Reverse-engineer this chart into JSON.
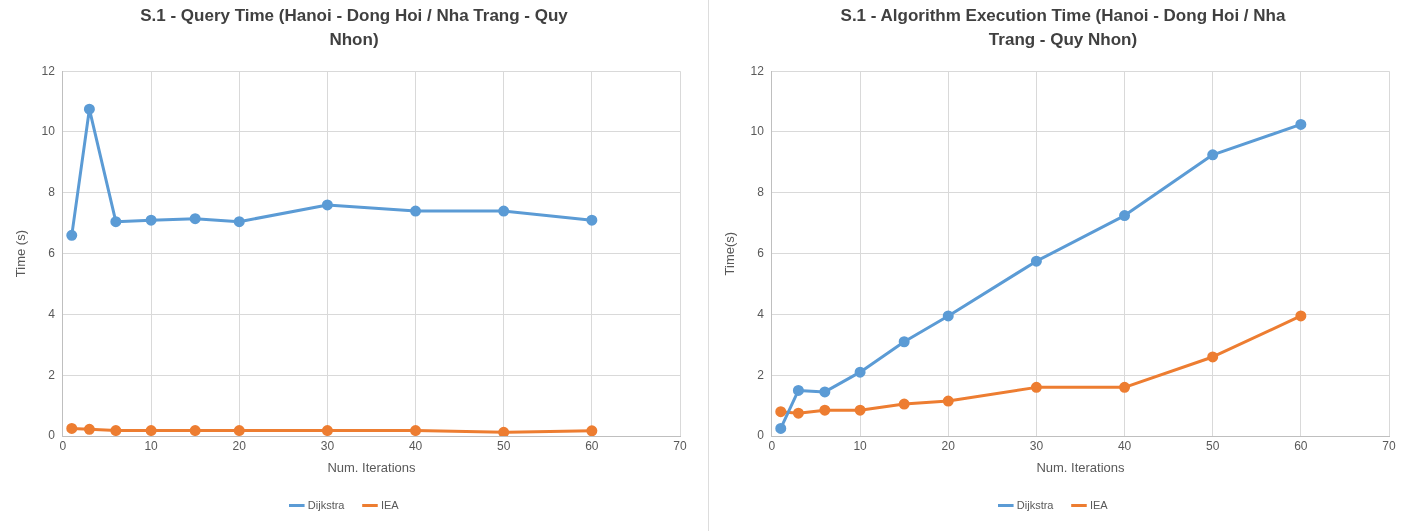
{
  "chart_data": [
    {
      "type": "line",
      "title": "S.1 - Query Time (Hanoi - Dong Hoi / Nha Trang - Quy Nhon)",
      "xlabel": "Num. Iterations",
      "ylabel": "Time (s)",
      "x": [
        1,
        3,
        6,
        10,
        15,
        20,
        30,
        40,
        50,
        60
      ],
      "series": [
        {
          "name": "Dijkstra",
          "color": "#5b9bd5",
          "values": [
            6.6,
            10.75,
            7.05,
            7.1,
            7.15,
            7.05,
            7.6,
            7.4,
            7.4,
            7.1
          ]
        },
        {
          "name": "IEA",
          "color": "#ed7d31",
          "values": [
            0.25,
            0.22,
            0.18,
            0.18,
            0.18,
            0.18,
            0.18,
            0.18,
            0.12,
            0.17
          ]
        }
      ],
      "xlim": [
        0,
        70
      ],
      "xticks": [
        0,
        10,
        20,
        30,
        40,
        50,
        60,
        70
      ],
      "ylim": [
        0,
        12
      ],
      "yticks": [
        0,
        2,
        4,
        6,
        8,
        10,
        12
      ],
      "grid": true,
      "legend": "bottom",
      "marker": "circle",
      "line_style": "solid"
    },
    {
      "type": "line",
      "title": "S.1 - Algorithm Execution Time (Hanoi - Dong Hoi / Nha Trang - Quy Nhon)",
      "xlabel": "Num. Iterations",
      "ylabel": "Time(s)",
      "x": [
        1,
        3,
        6,
        10,
        15,
        20,
        30,
        40,
        50,
        60
      ],
      "series": [
        {
          "name": "Dijkstra",
          "color": "#5b9bd5",
          "values": [
            0.25,
            1.5,
            1.45,
            2.1,
            3.1,
            3.95,
            5.75,
            7.25,
            9.25,
            10.25
          ]
        },
        {
          "name": "IEA",
          "color": "#ed7d31",
          "values": [
            0.8,
            0.75,
            0.85,
            0.85,
            1.05,
            1.15,
            1.6,
            1.6,
            2.6,
            3.95
          ]
        }
      ],
      "xlim": [
        0,
        70
      ],
      "xticks": [
        0,
        10,
        20,
        30,
        40,
        50,
        60,
        70
      ],
      "ylim": [
        0,
        12
      ],
      "yticks": [
        0,
        2,
        4,
        6,
        8,
        10,
        12
      ],
      "grid": true,
      "legend": "bottom",
      "marker": "circle",
      "line_style": "solid"
    }
  ]
}
